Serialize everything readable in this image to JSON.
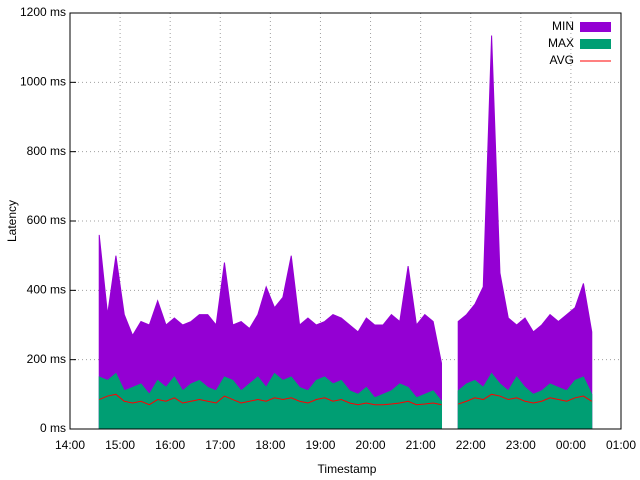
{
  "chart_data": {
    "type": "area",
    "xlabel": "Timestamp",
    "ylabel": "Latency",
    "xlim": [
      "14:00",
      "01:00"
    ],
    "xticks": [
      "14:00",
      "15:00",
      "16:00",
      "17:00",
      "18:00",
      "19:00",
      "20:00",
      "21:00",
      "22:00",
      "23:00",
      "00:00",
      "01:00"
    ],
    "ylim": [
      0,
      1200
    ],
    "yticks": [
      {
        "value": 0,
        "label": "0 ms"
      },
      {
        "value": 200,
        "label": "200 ms"
      },
      {
        "value": 400,
        "label": "400 ms"
      },
      {
        "value": 600,
        "label": "600 ms"
      },
      {
        "value": 800,
        "label": "800 ms"
      },
      {
        "value": 1000,
        "label": "1000 ms"
      },
      {
        "value": 1200,
        "label": "1200 ms"
      }
    ],
    "grid": true,
    "legend": "top-right",
    "x": [
      "14:35",
      "14:45",
      "14:55",
      "15:05",
      "15:15",
      "15:25",
      "15:35",
      "15:45",
      "15:55",
      "16:05",
      "16:15",
      "16:25",
      "16:35",
      "16:45",
      "16:55",
      "17:05",
      "17:15",
      "17:25",
      "17:35",
      "17:45",
      "17:55",
      "18:05",
      "18:15",
      "18:25",
      "18:35",
      "18:45",
      "18:55",
      "19:05",
      "19:15",
      "19:25",
      "19:35",
      "19:45",
      "19:55",
      "20:05",
      "20:15",
      "20:25",
      "20:35",
      "20:45",
      "20:55",
      "21:05",
      "21:15",
      "21:25",
      "21:35",
      "21:45",
      "21:55",
      "22:05",
      "22:15",
      "22:25",
      "22:35",
      "22:45",
      "22:55",
      "23:05",
      "23:15",
      "23:25",
      "23:35",
      "23:45",
      "23:55",
      "00:05",
      "00:15",
      "00:25"
    ],
    "series": [
      {
        "name": "MIN",
        "color": "#9400d3",
        "style": "area",
        "values": [
          560,
          330,
          500,
          330,
          270,
          310,
          300,
          370,
          300,
          320,
          300,
          310,
          330,
          330,
          300,
          480,
          300,
          310,
          290,
          330,
          410,
          350,
          380,
          500,
          300,
          320,
          300,
          310,
          330,
          320,
          300,
          280,
          320,
          300,
          300,
          330,
          310,
          470,
          300,
          330,
          310,
          190,
          null,
          310,
          330,
          360,
          410,
          1135,
          450,
          320,
          300,
          320,
          280,
          300,
          330,
          310,
          330,
          350,
          420,
          280
        ]
      },
      {
        "name": "MAX",
        "color": "#009e73",
        "style": "area",
        "values": [
          150,
          140,
          160,
          110,
          120,
          130,
          100,
          140,
          120,
          150,
          110,
          130,
          140,
          120,
          110,
          150,
          140,
          110,
          130,
          150,
          120,
          160,
          140,
          150,
          120,
          110,
          140,
          150,
          130,
          140,
          110,
          100,
          120,
          90,
          100,
          110,
          130,
          120,
          90,
          100,
          110,
          80,
          null,
          110,
          130,
          140,
          120,
          160,
          130,
          110,
          150,
          120,
          100,
          110,
          130,
          120,
          110,
          140,
          150,
          100
        ]
      },
      {
        "name": "AVG",
        "color": "#ff0000",
        "style": "line",
        "values": [
          85,
          95,
          100,
          80,
          75,
          80,
          70,
          85,
          80,
          90,
          75,
          80,
          85,
          80,
          75,
          95,
          85,
          75,
          80,
          85,
          80,
          90,
          85,
          90,
          80,
          75,
          85,
          90,
          80,
          85,
          75,
          70,
          75,
          70,
          70,
          72,
          75,
          80,
          70,
          72,
          75,
          70,
          null,
          72,
          80,
          90,
          85,
          100,
          95,
          85,
          90,
          80,
          75,
          80,
          90,
          85,
          80,
          90,
          95,
          80
        ]
      }
    ]
  }
}
